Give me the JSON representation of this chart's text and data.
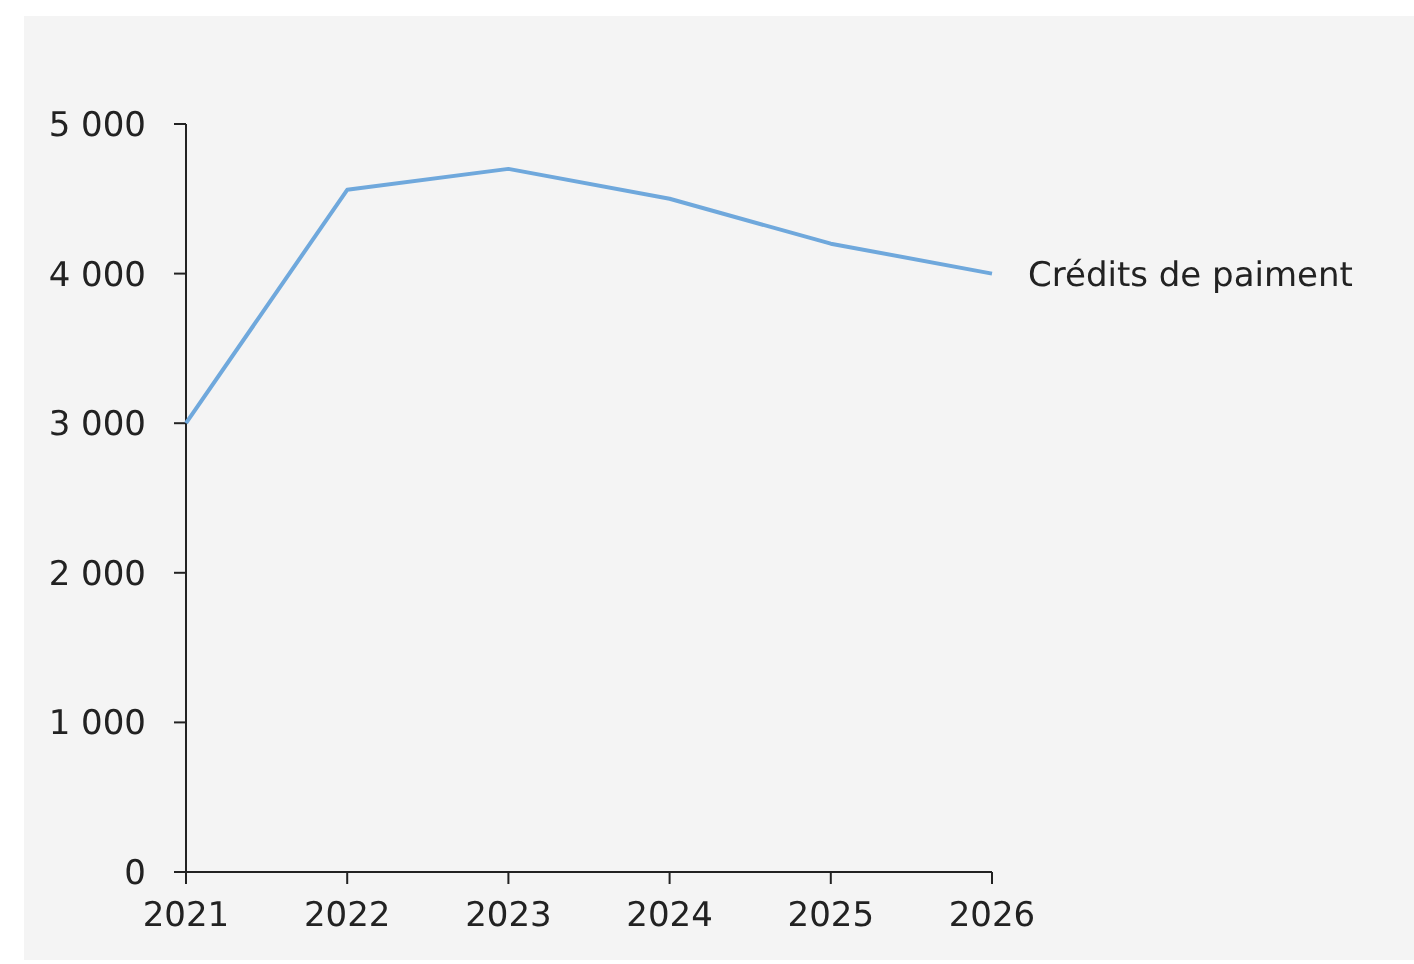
{
  "chart_data": {
    "type": "line",
    "x": [
      2021,
      2022,
      2023,
      2024,
      2025,
      2026
    ],
    "series": [
      {
        "name": "Crédits de paiment",
        "color": "#6fa8dc",
        "values": [
          3000,
          4560,
          4700,
          4500,
          4200,
          4000
        ]
      }
    ],
    "xlim": [
      2021,
      2026
    ],
    "xticks": [
      2021,
      2022,
      2023,
      2024,
      2025,
      2026
    ],
    "ylim": [
      0,
      5000
    ],
    "yticks": [
      0,
      {
        "value": 1000,
        "label": "1 000"
      },
      {
        "value": 2000,
        "label": "2 000"
      },
      {
        "value": 3000,
        "label": "3 000"
      },
      {
        "value": 4000,
        "label": "4 000"
      },
      {
        "value": 5000,
        "label": "5 000"
      }
    ],
    "grid": false,
    "marker": "none",
    "line_style": "solid"
  }
}
